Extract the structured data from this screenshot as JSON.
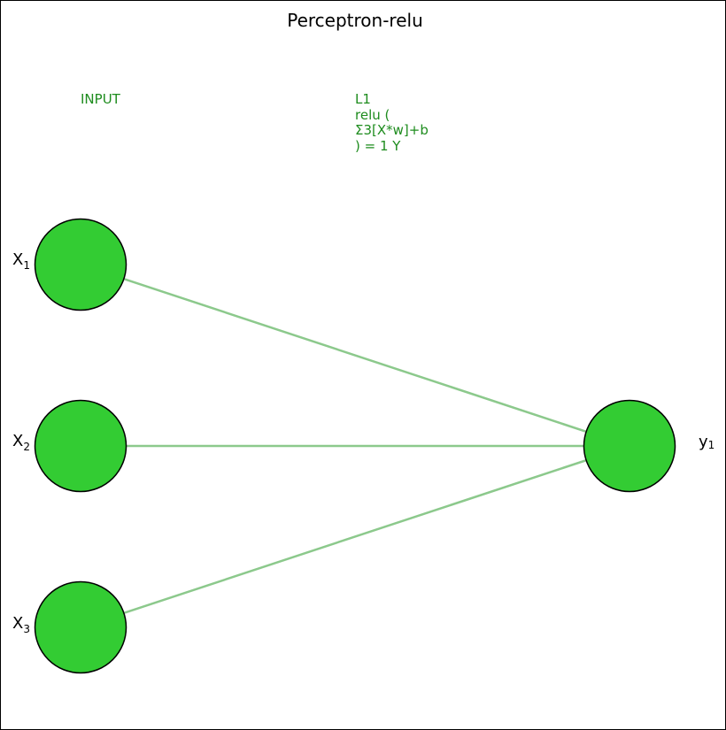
{
  "title": "Perceptron-relu",
  "colors": {
    "node_fill": "#33cc33",
    "node_stroke": "#000000",
    "edge": "#8cc98c",
    "layer_label": "#1e8c1e"
  },
  "layers": {
    "input": {
      "label": "INPUT"
    },
    "l1": {
      "label": "L1\nrelu (\nΣ3[X*w]+b\n) = 1 Y"
    }
  },
  "nodes": {
    "inputs": [
      {
        "symbol": "X",
        "subscript": "1"
      },
      {
        "symbol": "X",
        "subscript": "2"
      },
      {
        "symbol": "X",
        "subscript": "3"
      }
    ],
    "output": {
      "symbol": "y",
      "subscript": "1"
    }
  },
  "edges": [
    {
      "from": "X1",
      "to": "y1"
    },
    {
      "from": "X2",
      "to": "y1"
    },
    {
      "from": "X3",
      "to": "y1"
    }
  ]
}
